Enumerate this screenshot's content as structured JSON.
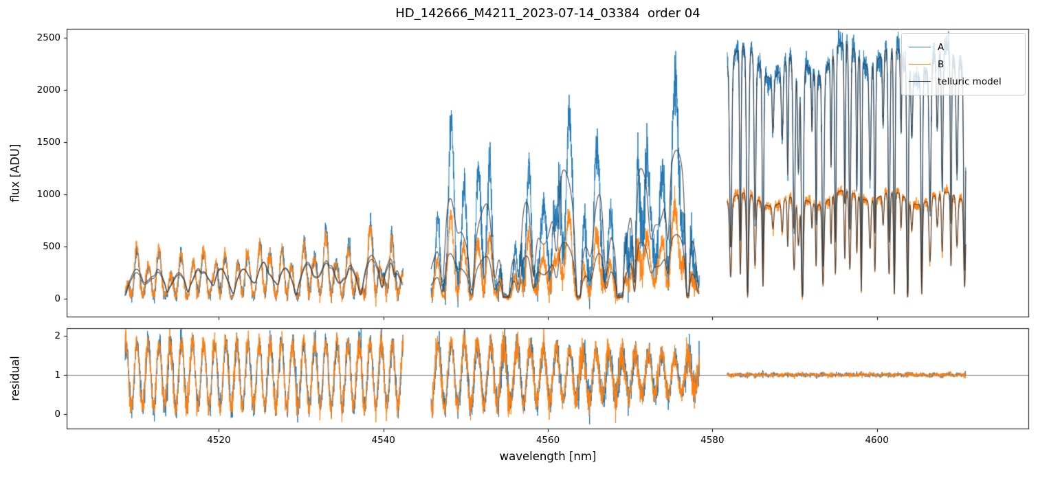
{
  "chart_data": {
    "type": "line",
    "title": "HD_142666_M4211_2023-07-14_03384  order 04",
    "xlabel": "wavelength [nm]",
    "xlim": [
      4501.5,
      4618.5
    ],
    "xticks": [
      4520,
      4540,
      4560,
      4580,
      4600
    ],
    "legend_loc": "upper right",
    "legend": [
      {
        "label": "A",
        "color": "#1f77b4"
      },
      {
        "label": "B",
        "color": "#ff7f0e"
      },
      {
        "label": "telluric model",
        "color": "#3a3a3a"
      }
    ],
    "panels": [
      {
        "name": "flux",
        "ylabel": "flux [ADU]",
        "ylim": [
          -178,
          2585
        ],
        "yticks": [
          0,
          500,
          1000,
          1500,
          2000,
          2500
        ]
      },
      {
        "name": "residual",
        "ylabel": "residual",
        "ylim": [
          -0.39,
          2.19
        ],
        "yticks": [
          0,
          1,
          2
        ],
        "hline": 1,
        "hline_color": "#808080"
      }
    ],
    "segments": [
      {
        "x_range": [
          4508.6,
          4542.4
        ],
        "A_continuum": [
          260,
          450
        ],
        "B_continuum": [
          300,
          400
        ],
        "telluric": {
          "undulation_depth": 0.45,
          "undulation_period": 2.6,
          "line_spacing": 1.9,
          "line_depth": [
            0.08,
            0.32
          ],
          "line_width": 0.28
        },
        "fringe": {
          "period": 1.35,
          "amplitude": [
            0.82,
            0.82
          ]
        },
        "flux_noise": 10,
        "residual_noise": 0.11
      },
      {
        "x_range": [
          4545.8,
          4578.4
        ],
        "A_continuum": [
          950,
          1530
        ],
        "B_continuum": [
          430,
          660
        ],
        "telluric": {
          "undulation_depth": 0.5,
          "undulation_period": 4.6,
          "line_spacing": 2.2,
          "line_depth": [
            0.15,
            0.7
          ],
          "line_width": 0.38
        },
        "fringe": {
          "period": 1.6,
          "amplitude": [
            0.85,
            0.45
          ]
        },
        "flux_noise": 12,
        "residual_noise": 0.11
      },
      {
        "x_range": [
          4581.8,
          4610.8
        ],
        "A_continuum": [
          2440,
          2510
        ],
        "B_continuum": [
          1020,
          1070
        ],
        "telluric": {
          "undulation_depth": 0.1,
          "undulation_period": 6.0,
          "line_spacing": 0.85,
          "line_depth": [
            0.2,
            1.0
          ],
          "line_width": 0.14
        },
        "fringe": {
          "period": 1.5,
          "amplitude": [
            0.015,
            0.015
          ]
        },
        "flux_noise": 14,
        "residual_noise": 0.022
      }
    ]
  }
}
